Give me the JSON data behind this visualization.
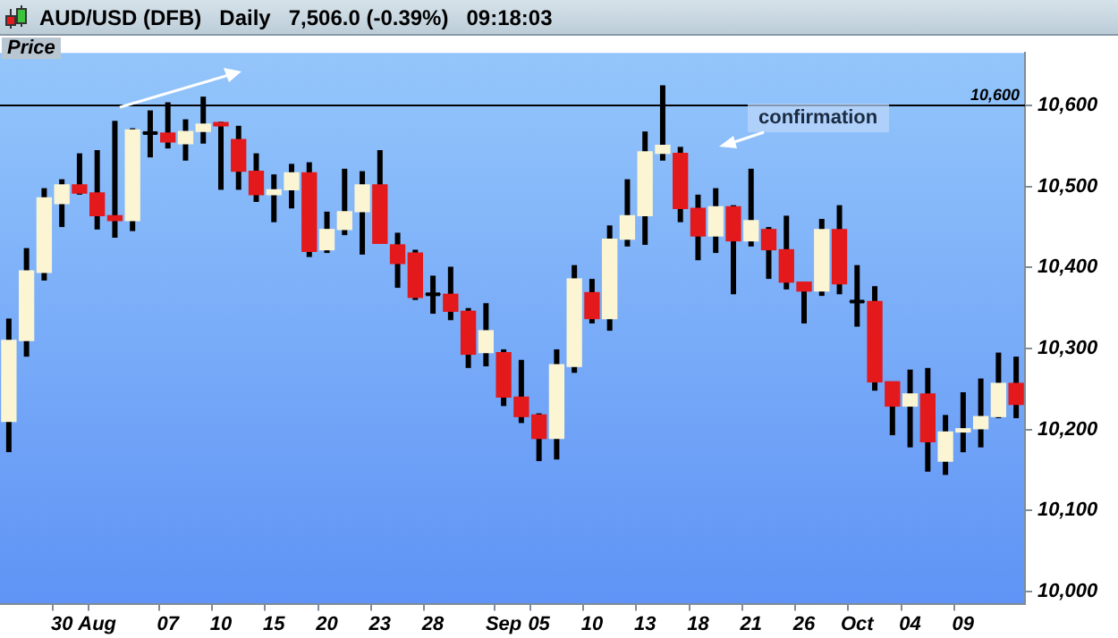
{
  "chart_data": {
    "type": "candlestick",
    "title": "AUD/USD (DFB)   Daily   7,506.0 (-0.39%)   09:18:03",
    "ylabel": "Price",
    "categories": [
      null,
      null,
      null,
      "30",
      null,
      "Aug",
      null,
      null,
      null,
      "07",
      null,
      null,
      "10",
      null,
      null,
      "15",
      null,
      null,
      "20",
      null,
      null,
      "23",
      null,
      null,
      "28",
      null,
      null,
      null,
      "Sep",
      null,
      "05",
      null,
      null,
      "10",
      null,
      null,
      "13",
      null,
      null,
      "18",
      null,
      null,
      "21",
      null,
      null,
      "26",
      null,
      null,
      "Oct",
      null,
      null,
      "04",
      null,
      null,
      "09",
      null,
      null,
      null
    ],
    "ohlc": [
      [
        10210,
        10337,
        10172,
        10310
      ],
      [
        10310,
        10424,
        10290,
        10396
      ],
      [
        10394,
        10498,
        10384,
        10486
      ],
      [
        10479,
        10509,
        10450,
        10502
      ],
      [
        10502,
        10541,
        10490,
        10492
      ],
      [
        10492,
        10545,
        10447,
        10464
      ],
      [
        10464,
        10581,
        10437,
        10458
      ],
      [
        10458,
        10572,
        10445,
        10570
      ],
      [
        10566,
        10594,
        10536,
        10566
      ],
      [
        10566,
        10604,
        10547,
        10555
      ],
      [
        10553,
        10583,
        10532,
        10568
      ],
      [
        10568,
        10611,
        10553,
        10577
      ],
      [
        10579,
        10580,
        10496,
        10575
      ],
      [
        10558,
        10575,
        10496,
        10519
      ],
      [
        10519,
        10541,
        10481,
        10490
      ],
      [
        10490,
        10515,
        10456,
        10496
      ],
      [
        10496,
        10528,
        10473,
        10517
      ],
      [
        10517,
        10530,
        10413,
        10420
      ],
      [
        10422,
        10469,
        10418,
        10447
      ],
      [
        10447,
        10522,
        10440,
        10469
      ],
      [
        10469,
        10519,
        10416,
        10502
      ],
      [
        10502,
        10545,
        10430,
        10430
      ],
      [
        10428,
        10443,
        10375,
        10405
      ],
      [
        10418,
        10422,
        10360,
        10363
      ],
      [
        10367,
        10390,
        10343,
        10367
      ],
      [
        10367,
        10401,
        10335,
        10346
      ],
      [
        10346,
        10350,
        10276,
        10293
      ],
      [
        10295,
        10356,
        10278,
        10322
      ],
      [
        10295,
        10299,
        10229,
        10240
      ],
      [
        10240,
        10286,
        10208,
        10216
      ],
      [
        10218,
        10220,
        10161,
        10189
      ],
      [
        10189,
        10299,
        10163,
        10280
      ],
      [
        10278,
        10403,
        10270,
        10386
      ],
      [
        10369,
        10386,
        10331,
        10337
      ],
      [
        10337,
        10452,
        10322,
        10435
      ],
      [
        10435,
        10509,
        10426,
        10464
      ],
      [
        10464,
        10568,
        10428,
        10543
      ],
      [
        10541,
        10625,
        10532,
        10551
      ],
      [
        10541,
        10549,
        10456,
        10473
      ],
      [
        10473,
        10490,
        10409,
        10439
      ],
      [
        10439,
        10498,
        10418,
        10475
      ],
      [
        10475,
        10477,
        10367,
        10433
      ],
      [
        10433,
        10522,
        10426,
        10458
      ],
      [
        10447,
        10450,
        10386,
        10422
      ],
      [
        10422,
        10464,
        10373,
        10382
      ],
      [
        10382,
        10382,
        10331,
        10371
      ],
      [
        10371,
        10460,
        10365,
        10447
      ],
      [
        10447,
        10477,
        10367,
        10380
      ],
      [
        10358,
        10403,
        10327,
        10358
      ],
      [
        10358,
        10377,
        10248,
        10259
      ],
      [
        10259,
        10259,
        10193,
        10229
      ],
      [
        10229,
        10274,
        10178,
        10244
      ],
      [
        10244,
        10276,
        10148,
        10185
      ],
      [
        10161,
        10218,
        10144,
        10197
      ],
      [
        10197,
        10246,
        10172,
        10201
      ],
      [
        10201,
        10263,
        10178,
        10216
      ],
      [
        10216,
        10295,
        10214,
        10257
      ],
      [
        10257,
        10290,
        10214,
        10231
      ]
    ],
    "colors": [
      "#fbf5d3",
      "#fbf5d3",
      "#fbf5d3",
      "#fbf5d3",
      "#e3191b",
      "#e3191b",
      "#e3191b",
      "#fbf5d3",
      "#000000",
      "#e3191b",
      "#fbf5d3",
      "#fbf5d3",
      "#e3191b",
      "#e3191b",
      "#e3191b",
      "#fbf5d3",
      "#fbf5d3",
      "#e3191b",
      "#fbf5d3",
      "#fbf5d3",
      "#fbf5d3",
      "#e3191b",
      "#e3191b",
      "#e3191b",
      "#000000",
      "#e3191b",
      "#e3191b",
      "#fbf5d3",
      "#e3191b",
      "#e3191b",
      "#e3191b",
      "#fbf5d3",
      "#fbf5d3",
      "#e3191b",
      "#fbf5d3",
      "#fbf5d3",
      "#fbf5d3",
      "#fbf5d3",
      "#e3191b",
      "#e3191b",
      "#fbf5d3",
      "#e3191b",
      "#fbf5d3",
      "#e3191b",
      "#e3191b",
      "#e3191b",
      "#fbf5d3",
      "#e3191b",
      "#000000",
      "#e3191b",
      "#e3191b",
      "#fbf5d3",
      "#e3191b",
      "#fbf5d3",
      "#fbf5d3",
      "#fbf5d3",
      "#fbf5d3",
      "#e3191b"
    ],
    "ylim": [
      9985,
      10665
    ],
    "yticks": [
      {
        "value": 10000,
        "label": "10,000"
      },
      {
        "value": 10100,
        "label": "10,100"
      },
      {
        "value": 10200,
        "label": "10,200"
      },
      {
        "value": 10300,
        "label": "10,300"
      },
      {
        "value": 10400,
        "label": "10,400"
      },
      {
        "value": 10500,
        "label": "10,500"
      },
      {
        "value": 10600,
        "label": "10,600"
      }
    ],
    "ref_lines": [
      {
        "axis": "y",
        "value": 10600,
        "label": "10,600",
        "color": "#000000"
      }
    ],
    "annotations": [
      "confirmation"
    ],
    "grid": false,
    "legend": false
  }
}
